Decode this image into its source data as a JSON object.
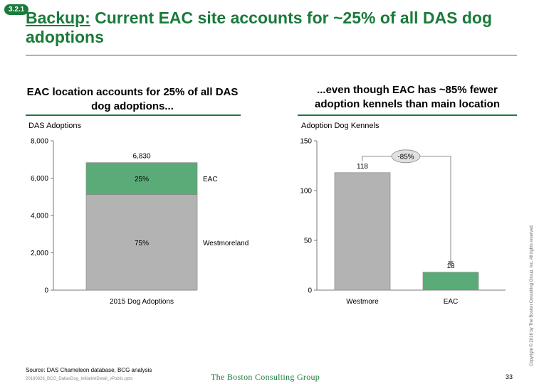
{
  "badge": "3.2.1",
  "title": {
    "prefix": "Backup:",
    "rest": " Current EAC site accounts for ~25% of all DAS dog adoptions"
  },
  "left": {
    "subtitle": "EAC location accounts for 25% of all DAS dog adoptions...",
    "ylabel": "DAS Adoptions"
  },
  "right": {
    "subtitle": "...even though EAC has ~85% fewer adoption kennels than main location",
    "ylabel": "Adoption Dog Kennels"
  },
  "chart_data": [
    {
      "type": "bar",
      "stacked": true,
      "categories": [
        "2015 Dog Adoptions"
      ],
      "total": 6830,
      "total_label": "6,830",
      "series": [
        {
          "name": "Westmoreland",
          "values": [
            5122
          ],
          "label": "75%",
          "color": "#b3b3b3"
        },
        {
          "name": "EAC",
          "values": [
            1708
          ],
          "label": "25%",
          "color": "#5bab78"
        }
      ],
      "ylabel": "DAS Adoptions",
      "ylim": [
        0,
        8000
      ],
      "yticks": [
        0,
        2000,
        4000,
        6000,
        8000
      ],
      "ytick_labels": [
        "0",
        "2,000",
        "4,000",
        "6,000",
        "8,000"
      ],
      "grid": false,
      "legend": "right"
    },
    {
      "type": "bar",
      "categories": [
        "Westmore",
        "EAC"
      ],
      "values": [
        118,
        18
      ],
      "value_labels": [
        "118",
        "18"
      ],
      "colors": [
        "#b3b3b3",
        "#5bab78"
      ],
      "ylabel": "Adoption Dog Kennels",
      "ylim": [
        0,
        150
      ],
      "yticks": [
        0,
        50,
        100,
        150
      ],
      "ytick_labels": [
        "0",
        "50",
        "100",
        "150"
      ],
      "grid": false,
      "annotation": "-85%"
    }
  ],
  "footer": {
    "source": "Source: DAS Chameleon database, BCG analysis",
    "file": "20160826_BCG_DallasDog_InitiativeDetail_vPublic.pptx",
    "logo": "The Boston Consulting Group",
    "page": "33",
    "copyright": "Copyright © 2016 by The Boston Consulting Group, Inc. All rights reserved."
  }
}
